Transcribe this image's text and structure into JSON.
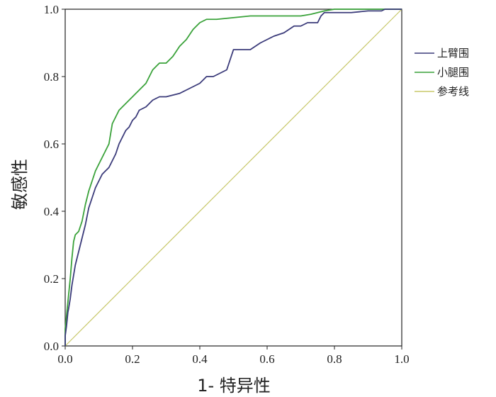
{
  "chart_data": {
    "type": "line",
    "title": "",
    "xlabel": "1- 特异性",
    "ylabel": "敏感性",
    "xlim": [
      0,
      1
    ],
    "ylim": [
      0,
      1
    ],
    "x_ticks": [
      "0.0",
      "0.2",
      "0.4",
      "0.6",
      "0.8",
      "1.0"
    ],
    "y_ticks": [
      "0.0",
      "0.2",
      "0.4",
      "0.6",
      "0.8",
      "1.0"
    ],
    "grid": false,
    "legend_position": "right",
    "series": [
      {
        "name": "上臂围",
        "color": "#3b3b7a",
        "x": [
          0.0,
          0.0,
          0.004,
          0.006,
          0.008,
          0.01,
          0.015,
          0.02,
          0.025,
          0.03,
          0.04,
          0.05,
          0.06,
          0.07,
          0.08,
          0.09,
          0.1,
          0.11,
          0.12,
          0.13,
          0.14,
          0.15,
          0.16,
          0.17,
          0.18,
          0.19,
          0.2,
          0.21,
          0.22,
          0.24,
          0.26,
          0.28,
          0.3,
          0.32,
          0.34,
          0.36,
          0.38,
          0.4,
          0.42,
          0.44,
          0.46,
          0.48,
          0.49,
          0.5,
          0.52,
          0.55,
          0.58,
          0.6,
          0.62,
          0.65,
          0.68,
          0.7,
          0.72,
          0.75,
          0.76,
          0.77,
          0.8,
          0.85,
          0.9,
          0.94,
          0.95,
          1.0
        ],
        "y": [
          0.0,
          0.03,
          0.06,
          0.08,
          0.1,
          0.11,
          0.14,
          0.18,
          0.21,
          0.24,
          0.28,
          0.32,
          0.36,
          0.41,
          0.44,
          0.47,
          0.49,
          0.51,
          0.52,
          0.53,
          0.55,
          0.57,
          0.6,
          0.62,
          0.64,
          0.65,
          0.67,
          0.68,
          0.7,
          0.71,
          0.73,
          0.74,
          0.74,
          0.745,
          0.75,
          0.76,
          0.77,
          0.78,
          0.8,
          0.8,
          0.81,
          0.82,
          0.85,
          0.88,
          0.88,
          0.88,
          0.9,
          0.91,
          0.92,
          0.93,
          0.95,
          0.95,
          0.96,
          0.96,
          0.98,
          0.99,
          0.99,
          0.99,
          0.995,
          0.995,
          1.0,
          1.0
        ]
      },
      {
        "name": "小腿围",
        "color": "#3aa23a",
        "x": [
          0.0,
          0.0,
          0.005,
          0.01,
          0.015,
          0.02,
          0.025,
          0.03,
          0.04,
          0.05,
          0.06,
          0.07,
          0.08,
          0.09,
          0.1,
          0.11,
          0.12,
          0.13,
          0.14,
          0.15,
          0.16,
          0.17,
          0.18,
          0.2,
          0.22,
          0.24,
          0.26,
          0.28,
          0.3,
          0.32,
          0.34,
          0.36,
          0.38,
          0.4,
          0.42,
          0.45,
          0.5,
          0.55,
          0.6,
          0.65,
          0.7,
          0.73,
          0.75,
          0.77,
          0.8,
          0.85,
          0.9,
          1.0
        ],
        "y": [
          0.0,
          0.05,
          0.1,
          0.15,
          0.2,
          0.26,
          0.31,
          0.33,
          0.34,
          0.37,
          0.42,
          0.46,
          0.49,
          0.52,
          0.54,
          0.56,
          0.58,
          0.6,
          0.66,
          0.68,
          0.7,
          0.71,
          0.72,
          0.74,
          0.76,
          0.78,
          0.82,
          0.84,
          0.84,
          0.86,
          0.89,
          0.91,
          0.94,
          0.96,
          0.97,
          0.97,
          0.975,
          0.98,
          0.98,
          0.98,
          0.98,
          0.985,
          0.99,
          0.995,
          1.0,
          1.0,
          1.0,
          1.0
        ]
      },
      {
        "name": "参考线",
        "color": "#c8c86a",
        "x": [
          0,
          1
        ],
        "y": [
          0,
          1
        ]
      }
    ]
  }
}
